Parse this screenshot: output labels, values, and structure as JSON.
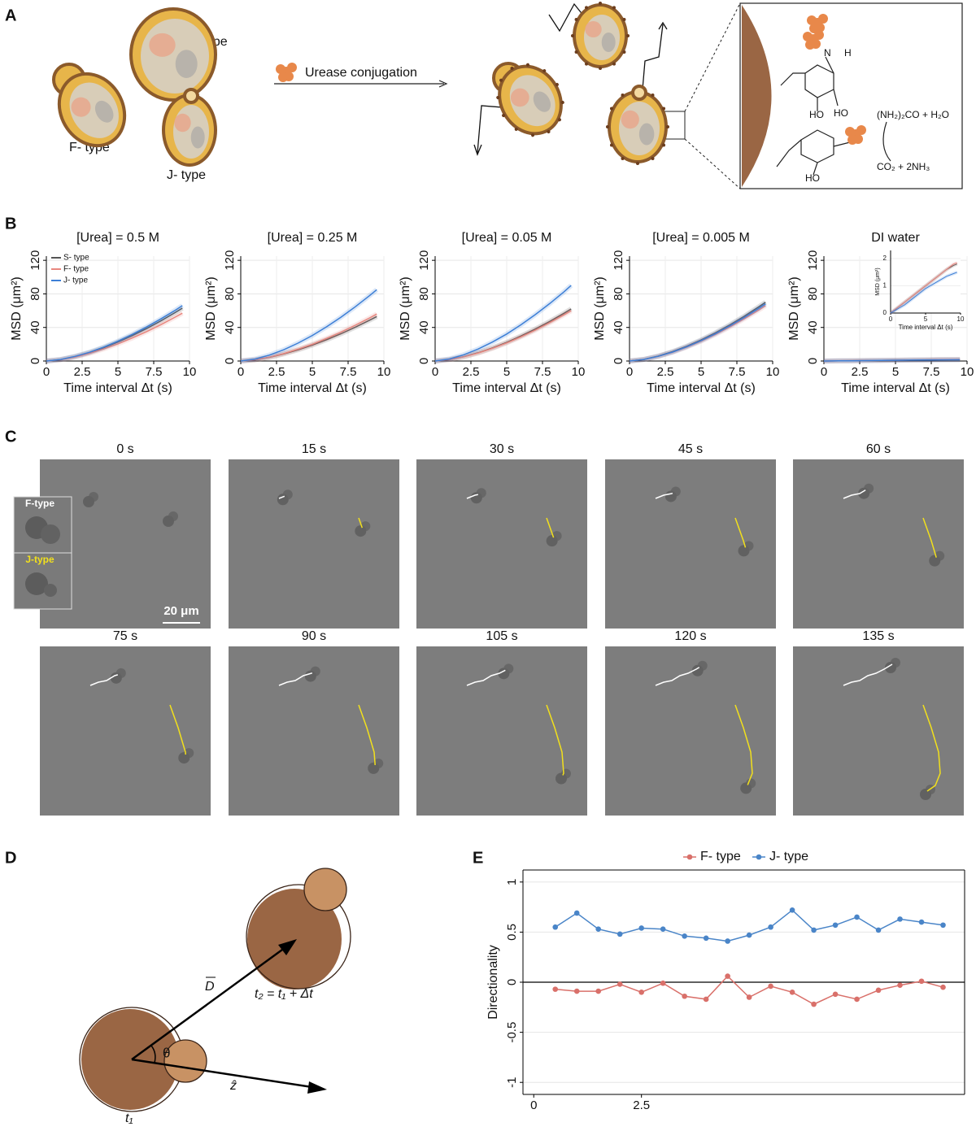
{
  "panel_labels": [
    "A",
    "B",
    "C",
    "D",
    "E"
  ],
  "panel_a": {
    "cells": [
      "S- type",
      "F- type",
      "J- type"
    ],
    "arrow_label": "Urease conjugation",
    "groups": [
      "HO",
      "HO",
      "HO"
    ],
    "amine": [
      "N",
      "H"
    ],
    "reaction_in": "(NH₂)₂CO + H₂O",
    "reaction_out": "CO₂ + 2NH₃"
  },
  "chart_data": [
    {
      "type": "line",
      "title": "[Urea] = 0.5 M",
      "xlabel": "Time interval Δt (s)",
      "ylabel": "MSD (μm²)",
      "x": [
        0,
        1,
        2,
        3,
        4,
        5,
        6,
        7,
        8,
        9,
        9.5
      ],
      "xlim": [
        0,
        10
      ],
      "xticks": [
        0,
        2.5,
        5,
        7.5,
        10
      ],
      "ylim": [
        0,
        125
      ],
      "yticks": [
        0,
        40,
        80,
        120
      ],
      "grid": true,
      "legend": "upper left",
      "series": [
        {
          "name": "S- type",
          "color": "#555555",
          "values": [
            0,
            1.7,
            5.2,
            10,
            15.8,
            22.6,
            30.2,
            38.7,
            47.9,
            57.8,
            63
          ]
        },
        {
          "name": "F- type",
          "color": "#e8877f",
          "values": [
            0,
            1.5,
            4.7,
            9,
            14.3,
            20.4,
            27.4,
            35,
            43.3,
            52.3,
            57
          ]
        },
        {
          "name": "J- type",
          "color": "#3d7fd6",
          "values": [
            0,
            1.8,
            5.5,
            10.4,
            16.6,
            23.6,
            31.7,
            40.5,
            50.2,
            60.5,
            66
          ]
        }
      ]
    },
    {
      "type": "line",
      "title": "[Urea] = 0.25 M",
      "xlabel": "Time interval Δt (s)",
      "ylabel": "MSD (μm²)",
      "x": [
        0,
        1,
        2,
        3,
        4,
        5,
        6,
        7,
        8,
        9,
        9.5
      ],
      "xlim": [
        0,
        10
      ],
      "xticks": [
        0,
        2.5,
        5,
        7.5,
        10
      ],
      "ylim": [
        0,
        125
      ],
      "yticks": [
        0,
        40,
        80,
        120
      ],
      "grid": true,
      "series": [
        {
          "name": "S- type",
          "color": "#555555",
          "values": [
            0,
            1.4,
            4.4,
            8.4,
            13.3,
            19,
            25.4,
            32.5,
            40.3,
            48.6,
            53
          ]
        },
        {
          "name": "F- type",
          "color": "#e8877f",
          "values": [
            0,
            1.5,
            4.6,
            8.8,
            14.1,
            20,
            26.9,
            34.4,
            42.6,
            51.4,
            56
          ]
        },
        {
          "name": "J- type",
          "color": "#3d7fd6",
          "values": [
            0,
            2.3,
            7.1,
            13.4,
            21.3,
            30.4,
            40.8,
            52.2,
            64.6,
            77.9,
            85
          ]
        }
      ]
    },
    {
      "type": "line",
      "title": "[Urea] = 0.05 M",
      "xlabel": "Time interval Δt (s)",
      "ylabel": "MSD (μm²)",
      "x": [
        0,
        1,
        2,
        3,
        4,
        5,
        6,
        7,
        8,
        9,
        9.5
      ],
      "xlim": [
        0,
        10
      ],
      "xticks": [
        0,
        2.5,
        5,
        7.5,
        10
      ],
      "ylim": [
        0,
        125
      ],
      "yticks": [
        0,
        40,
        80,
        120
      ],
      "grid": true,
      "series": [
        {
          "name": "S- type",
          "color": "#555555",
          "values": [
            0,
            1.7,
            5.1,
            9.8,
            15.6,
            22.2,
            29.8,
            38.1,
            47.1,
            56.9,
            62
          ]
        },
        {
          "name": "F- type",
          "color": "#e8877f",
          "values": [
            0,
            1.6,
            5,
            9.5,
            15.1,
            21.5,
            28.8,
            36.8,
            45.6,
            55,
            60
          ]
        },
        {
          "name": "J- type",
          "color": "#3d7fd6",
          "values": [
            0,
            2.4,
            7.5,
            14.2,
            22.6,
            32.2,
            43.2,
            55.3,
            68.4,
            82.5,
            90
          ]
        }
      ]
    },
    {
      "type": "line",
      "title": "[Urea] = 0.005 M",
      "xlabel": "Time interval Δt (s)",
      "ylabel": "MSD (μm²)",
      "x": [
        0,
        1,
        2,
        3,
        4,
        5,
        6,
        7,
        8,
        9,
        9.5
      ],
      "xlim": [
        0,
        10
      ],
      "xticks": [
        0,
        2.5,
        5,
        7.5,
        10
      ],
      "ylim": [
        0,
        125
      ],
      "yticks": [
        0,
        40,
        80,
        120
      ],
      "grid": true,
      "series": [
        {
          "name": "S- type",
          "color": "#555555",
          "values": [
            0,
            1.9,
            5.8,
            11.1,
            17.6,
            25.1,
            33.6,
            43,
            53.2,
            64.2,
            70
          ]
        },
        {
          "name": "F- type",
          "color": "#e8877f",
          "values": [
            0,
            1.8,
            5.5,
            10.4,
            16.6,
            23.6,
            31.7,
            40.5,
            50.2,
            60.5,
            66
          ]
        },
        {
          "name": "J- type",
          "color": "#3d7fd6",
          "values": [
            0,
            1.8,
            5.6,
            10.7,
            17.1,
            24.3,
            32.6,
            41.8,
            51.7,
            62.4,
            68
          ]
        }
      ]
    },
    {
      "type": "line",
      "title": "DI  water",
      "xlabel": "Time interval Δt (s)",
      "ylabel": "MSD (μm²)",
      "x": [
        0,
        1,
        2,
        3,
        4,
        5,
        6,
        7,
        8,
        9,
        9.5
      ],
      "xlim": [
        0,
        10
      ],
      "xticks": [
        0,
        2.5,
        5,
        7.5,
        10
      ],
      "ylim": [
        0,
        125
      ],
      "yticks": [
        0,
        40,
        80,
        120
      ],
      "grid": true,
      "inset": {
        "xlim": [
          0,
          10
        ],
        "xticks": [
          0,
          5,
          10
        ],
        "ylim": [
          0,
          2.3
        ],
        "yticks": [
          0,
          1,
          2
        ],
        "xlabel": "Time interval Δt (s)",
        "ylabel": "MSD (μm²)"
      },
      "series": [
        {
          "name": "S- type",
          "color": "#555555",
          "values": [
            0,
            0.2,
            0.4,
            0.6,
            0.8,
            1.0,
            1.2,
            1.4,
            1.6,
            1.75,
            1.8
          ]
        },
        {
          "name": "F- type",
          "color": "#e8877f",
          "values": [
            0,
            0.2,
            0.4,
            0.6,
            0.8,
            1.0,
            1.2,
            1.4,
            1.6,
            1.8,
            1.85
          ]
        },
        {
          "name": "J- type",
          "color": "#3d7fd6",
          "values": [
            0,
            0.15,
            0.3,
            0.5,
            0.7,
            0.9,
            1.05,
            1.2,
            1.35,
            1.45,
            1.5
          ]
        }
      ]
    },
    {
      "type": "line",
      "ylabel": "Directionality",
      "markers": true,
      "legend": "top",
      "x": [
        0.5,
        1,
        1.5,
        2,
        2.5,
        3,
        3.5,
        4,
        4.5,
        5,
        5.5,
        6,
        6.5,
        7,
        7.5,
        8,
        8.5,
        9,
        9.5
      ],
      "xlim": [
        -0.25,
        10
      ],
      "xticks": [
        0,
        2.5
      ],
      "ylim": [
        -1.12,
        1.12
      ],
      "yticks": [
        -1,
        -0.5,
        0,
        0.5,
        1
      ],
      "grid": true,
      "series": [
        {
          "name": "F- type",
          "color": "#d9706a",
          "values": [
            -0.07,
            -0.09,
            -0.09,
            -0.02,
            -0.1,
            -0.01,
            -0.14,
            -0.17,
            0.06,
            -0.15,
            -0.04,
            -0.1,
            -0.22,
            -0.12,
            -0.17,
            -0.08,
            -0.03,
            0.01,
            -0.05
          ]
        },
        {
          "name": "J- type",
          "color": "#4a85c8",
          "values": [
            0.55,
            0.69,
            0.53,
            0.48,
            0.54,
            0.53,
            0.46,
            0.44,
            0.41,
            0.47,
            0.55,
            0.72,
            0.52,
            0.57,
            0.65,
            0.52,
            0.63,
            0.6,
            0.57
          ]
        }
      ]
    }
  ],
  "panel_c": {
    "times": [
      "0 s",
      "15 s",
      "30 s",
      "45 s",
      "60 s",
      "75 s",
      "90 s",
      "105 s",
      "120 s",
      "135 s"
    ],
    "inset_labels": [
      "F-type",
      "J-type"
    ],
    "scale_bar": "20 μm"
  },
  "panel_d": {
    "angle": "θ",
    "vector": "D",
    "time_end": "t₂ = t₁ + Δt",
    "axis": "ẑ",
    "time_start": "t₁"
  }
}
